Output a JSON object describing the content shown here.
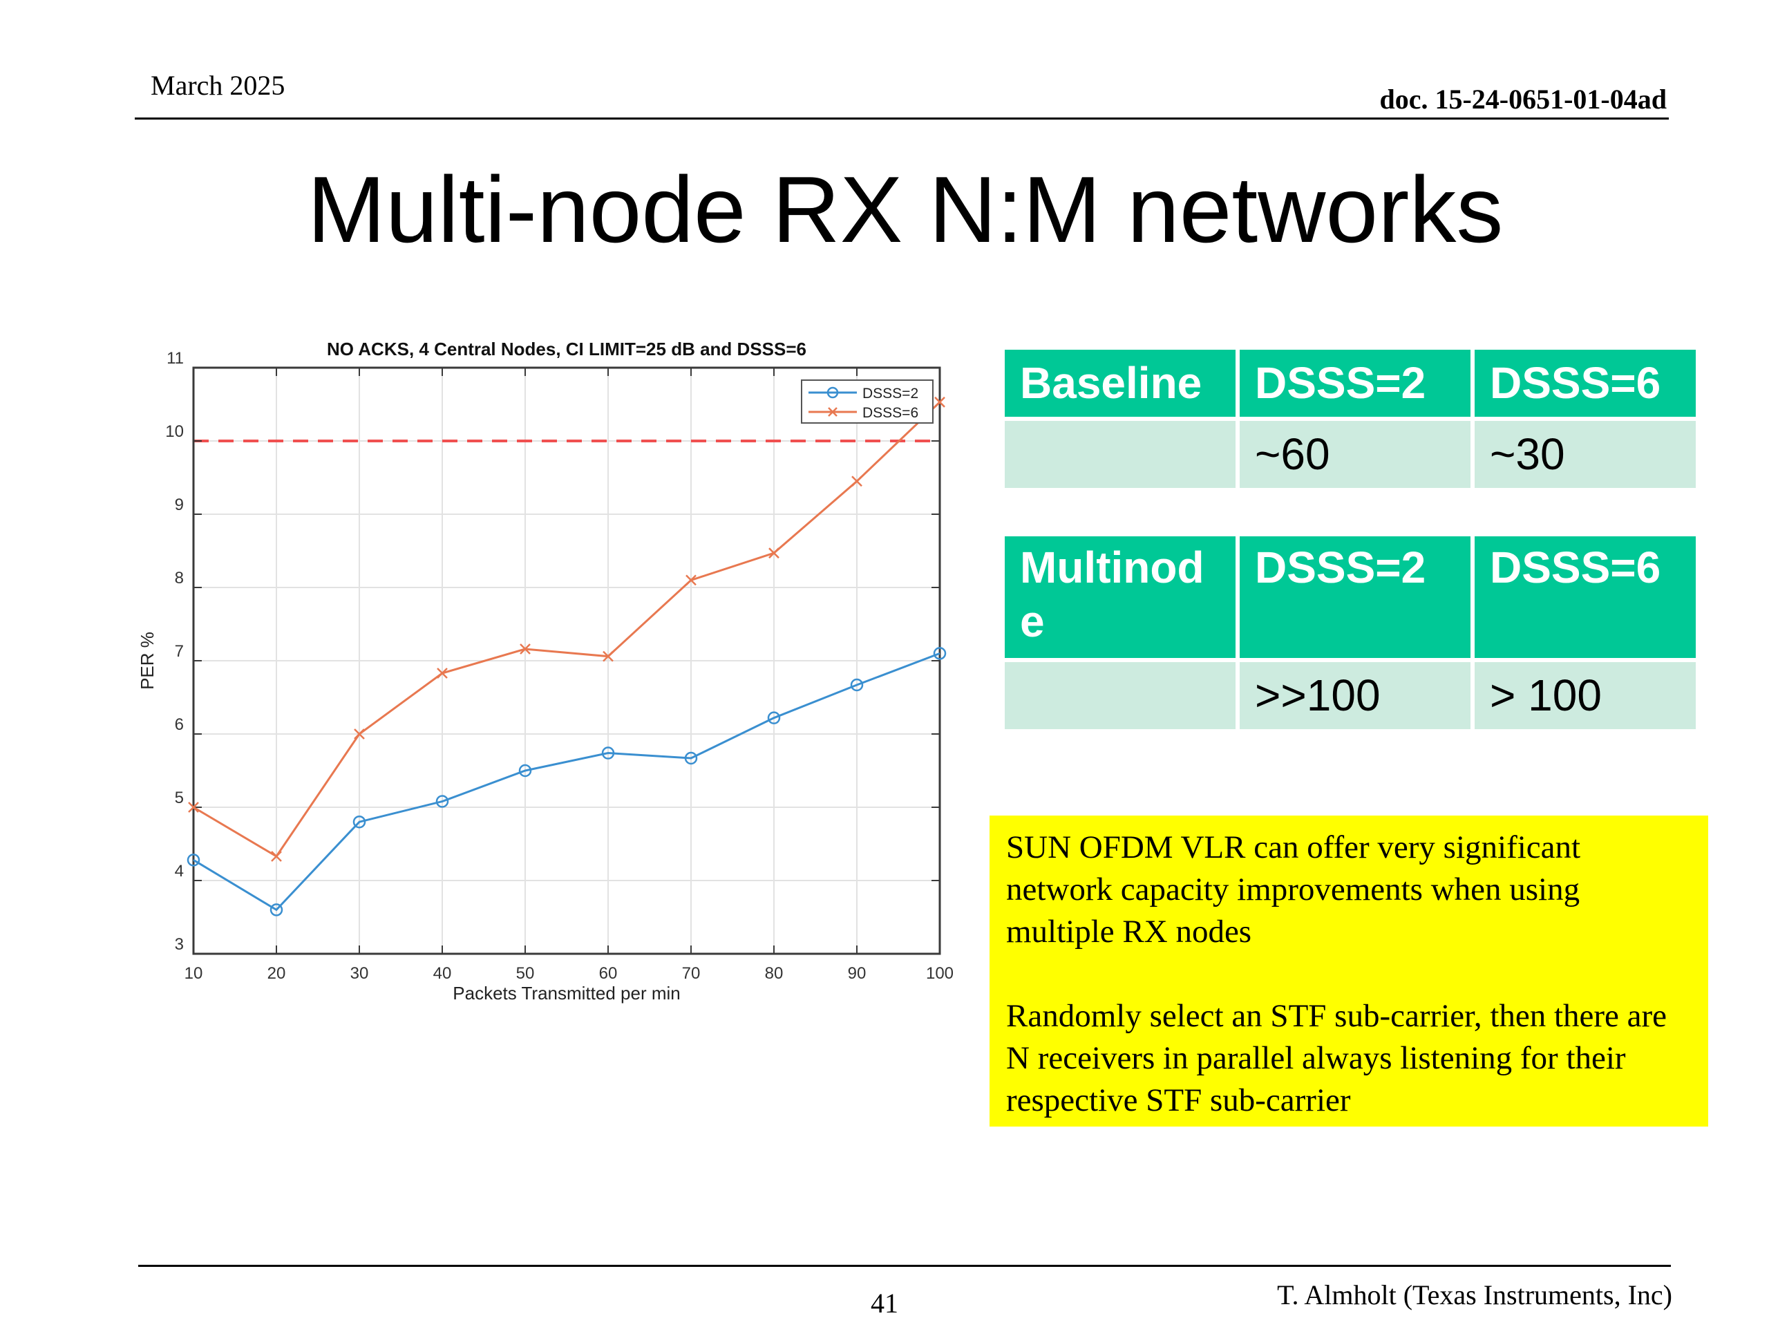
{
  "header": {
    "date": "March 2025",
    "doc_id": "doc. 15-24-0651-01-04ad"
  },
  "slide": {
    "title": "Multi-node RX N:M networks"
  },
  "tables": [
    {
      "header": [
        "Baseline",
        "DSSS=2",
        "DSSS=6"
      ],
      "row": [
        "",
        "~60",
        "~30"
      ]
    },
    {
      "header": [
        "Multinod e",
        "DSSS=2",
        "DSSS=6"
      ],
      "row": [
        "",
        ">>100",
        "> 100"
      ]
    }
  ],
  "note": {
    "p1": "SUN OFDM VLR can offer very significant network capacity improvements when using multiple RX nodes",
    "p2": "Randomly select an STF sub-carrier, then there are N receivers in parallel always listening for their respective STF sub-carrier"
  },
  "footer": {
    "page_number": "41",
    "author": "T. Almholt (Texas Instruments, Inc)"
  },
  "colors": {
    "table_header": "#00C896",
    "table_body": "#CDEBDF",
    "note_bg": "#FFFF00",
    "series_dsss2": "#3A8FD0",
    "series_dsss6": "#E87850",
    "limit_line": "#F05050"
  },
  "chart_data": {
    "type": "line",
    "title": "NO ACKS, 4 Central Nodes, CI LIMIT=25 dB and DSSS=6",
    "xlabel": "Packets Transmitted per min",
    "ylabel": "PER %",
    "xlim": [
      10,
      100
    ],
    "ylim": [
      3,
      11
    ],
    "x": [
      10,
      20,
      30,
      40,
      50,
      60,
      70,
      80,
      90,
      100
    ],
    "xticks": [
      "10",
      "20",
      "30",
      "40",
      "50",
      "60",
      "70",
      "80",
      "90",
      "100"
    ],
    "yticks": [
      "3",
      "4",
      "5",
      "6",
      "7",
      "8",
      "9",
      "10",
      "11"
    ],
    "grid": true,
    "legend_position": "top-right",
    "series": [
      {
        "name": "DSSS=2",
        "marker": "circle",
        "color": "#3A8FD0",
        "values": [
          4.28,
          3.6,
          4.8,
          5.08,
          5.5,
          5.74,
          5.67,
          6.22,
          6.67,
          7.1
        ]
      },
      {
        "name": "DSSS=6",
        "marker": "x",
        "color": "#E87850",
        "values": [
          5.0,
          4.33,
          6.0,
          6.83,
          7.16,
          7.06,
          8.1,
          8.47,
          9.45,
          10.53
        ]
      }
    ],
    "reference_line": {
      "y": 10,
      "style": "dashed",
      "color": "#F05050"
    }
  }
}
